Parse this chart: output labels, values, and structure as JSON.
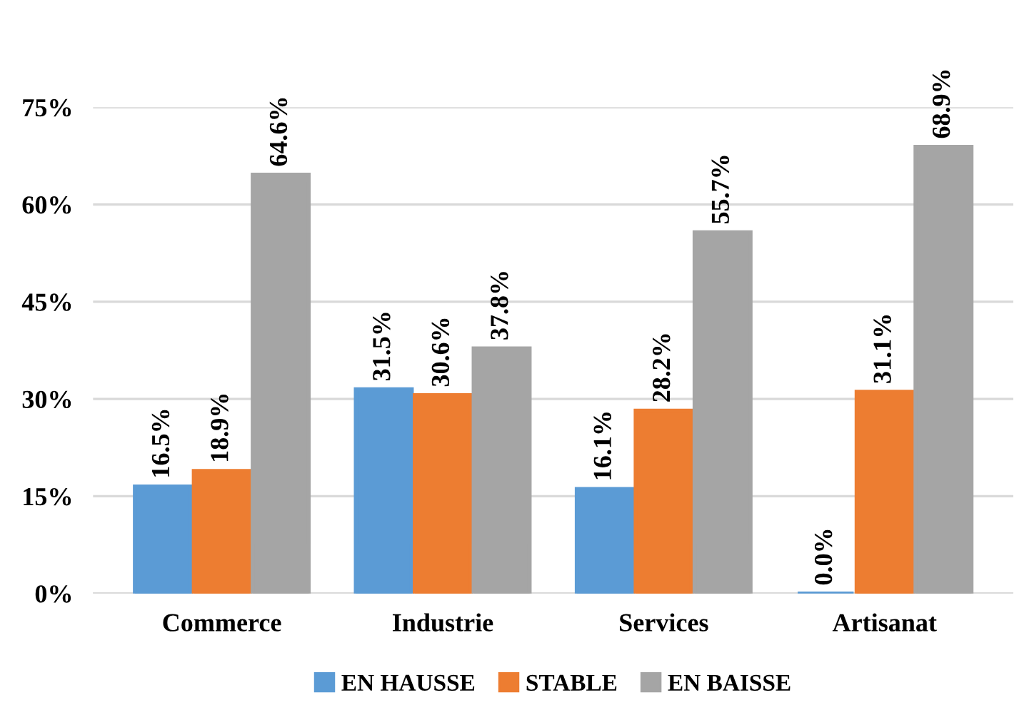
{
  "chart_data": {
    "type": "bar",
    "categories": [
      "Commerce",
      "Industrie",
      "Services",
      "Artisanat"
    ],
    "series": [
      {
        "name": "EN HAUSSE",
        "color": "#5b9bd5",
        "values": [
          16.5,
          31.5,
          16.1,
          0.0
        ],
        "value_labels": [
          "16.5%",
          "31.5%",
          "16.1%",
          "0.0%"
        ]
      },
      {
        "name": "STABLE",
        "color": "#ed7d31",
        "values": [
          18.9,
          30.6,
          28.2,
          31.1
        ],
        "value_labels": [
          "18.9%",
          "30.6%",
          "28.2%",
          "31.1%"
        ]
      },
      {
        "name": "EN BAISSE",
        "color": "#a5a5a5",
        "values": [
          64.6,
          37.8,
          55.7,
          68.9
        ],
        "value_labels": [
          "64.6%",
          "37.8%",
          "55.7%",
          "68.9%"
        ]
      }
    ],
    "ylim": [
      0,
      75
    ],
    "yticks": [
      {
        "value": 0,
        "label": "0%"
      },
      {
        "value": 15,
        "label": "15%"
      },
      {
        "value": 30,
        "label": "30%"
      },
      {
        "value": 45,
        "label": "45%"
      },
      {
        "value": 60,
        "label": "60%"
      },
      {
        "value": 75,
        "label": "75%"
      }
    ],
    "grid": "y",
    "legend": "bottom"
  }
}
